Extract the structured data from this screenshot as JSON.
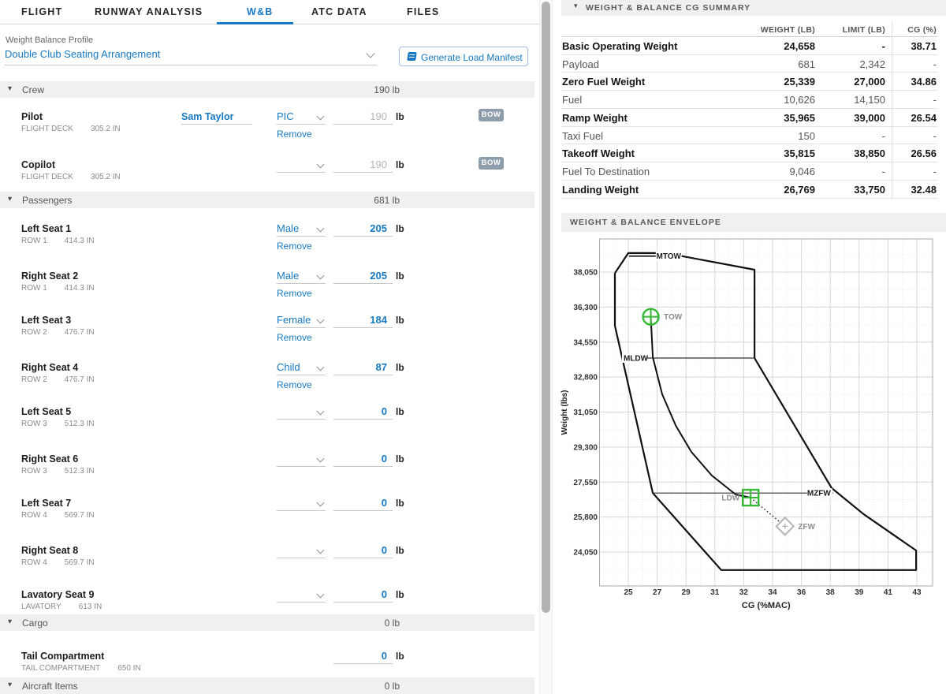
{
  "tabs": {
    "items": [
      {
        "label": "FLIGHT",
        "active": false
      },
      {
        "label": "RUNWAY ANALYSIS",
        "active": false
      },
      {
        "label": "W&B",
        "active": true
      },
      {
        "label": "ATC DATA",
        "active": false
      },
      {
        "label": "FILES",
        "active": false
      }
    ]
  },
  "profile": {
    "label": "Weight Balance Profile",
    "value": "Double Club Seating Arrangement",
    "button_label": "Generate Load Manifest"
  },
  "colors": {
    "accent_blue": "#1879c2",
    "marker_green": "#35b835",
    "marker_gray": "#b9b9b9"
  },
  "sections": [
    {
      "id": "crew",
      "title": "Crew",
      "total": "190 lb",
      "rows": [
        {
          "name": "Pilot",
          "station": "FLIGHT DECK",
          "arm": "305.2 IN",
          "person": "Sam Taylor",
          "has_select": true,
          "select": "PIC",
          "weight": "190",
          "placeholder": true,
          "unit": "lb",
          "badge": "BOW",
          "remove": "Remove"
        },
        {
          "name": "Copilot",
          "station": "FLIGHT DECK",
          "arm": "305.2 IN",
          "has_select": true,
          "select": "",
          "weight": "190",
          "placeholder": true,
          "unit": "lb",
          "badge": "BOW"
        }
      ]
    },
    {
      "id": "passengers",
      "title": "Passengers",
      "total": "681 lb",
      "rows": [
        {
          "name": "Left Seat 1",
          "station": "ROW 1",
          "arm": "414.3 IN",
          "has_select": true,
          "select": "Male",
          "weight": "205",
          "unit": "lb",
          "remove": "Remove"
        },
        {
          "name": "Right Seat 2",
          "station": "ROW 1",
          "arm": "414.3 IN",
          "has_select": true,
          "select": "Male",
          "weight": "205",
          "unit": "lb",
          "remove": "Remove"
        },
        {
          "name": "Left Seat 3",
          "station": "ROW 2",
          "arm": "476.7 IN",
          "has_select": true,
          "select": "Female",
          "weight": "184",
          "unit": "lb",
          "remove": "Remove"
        },
        {
          "name": "Right Seat 4",
          "station": "ROW 2",
          "arm": "476.7 IN",
          "has_select": true,
          "select": "Child",
          "weight": "87",
          "unit": "lb",
          "remove": "Remove"
        },
        {
          "name": "Left Seat 5",
          "station": "ROW 3",
          "arm": "512.3 IN",
          "has_select": true,
          "select": "",
          "weight": "0",
          "unit": "lb"
        },
        {
          "name": "Right Seat 6",
          "station": "ROW 3",
          "arm": "512.3 IN",
          "has_select": true,
          "select": "",
          "weight": "0",
          "unit": "lb"
        },
        {
          "name": "Left Seat 7",
          "station": "ROW 4",
          "arm": "569.7 IN",
          "has_select": true,
          "select": "",
          "weight": "0",
          "unit": "lb"
        },
        {
          "name": "Right Seat 8",
          "station": "ROW 4",
          "arm": "569.7 IN",
          "has_select": true,
          "select": "",
          "weight": "0",
          "unit": "lb"
        },
        {
          "name": "Lavatory Seat 9",
          "station": "LAVATORY",
          "arm": "613 IN",
          "has_select": true,
          "select": "",
          "weight": "0",
          "unit": "lb"
        }
      ]
    },
    {
      "id": "cargo",
      "title": "Cargo",
      "total": "0 lb",
      "rows": [
        {
          "name": "Tail Compartment",
          "station": "TAIL COMPARTMENT",
          "arm": "650 IN",
          "weight": "0",
          "unit": "lb"
        }
      ]
    },
    {
      "id": "aircraft-items",
      "title": "Aircraft Items",
      "total": "0 lb",
      "rows": []
    }
  ],
  "summary": {
    "title": "WEIGHT & BALANCE CG SUMMARY",
    "columns": [
      "WEIGHT (LB)",
      "LIMIT (LB)",
      "CG (%)"
    ],
    "rows": [
      {
        "label": "Basic Operating Weight",
        "weight": "24,658",
        "limit": "-",
        "cg": "38.71",
        "emphasis": true
      },
      {
        "label": "Payload",
        "weight": "681",
        "limit": "2,342",
        "cg": "-",
        "emphasis": false
      },
      {
        "label": "Zero Fuel Weight",
        "weight": "25,339",
        "limit": "27,000",
        "cg": "34.86",
        "emphasis": true
      },
      {
        "label": "Fuel",
        "weight": "10,626",
        "limit": "14,150",
        "cg": "-",
        "emphasis": false
      },
      {
        "label": "Ramp Weight",
        "weight": "35,965",
        "limit": "39,000",
        "cg": "26.54",
        "emphasis": true
      },
      {
        "label": "Taxi Fuel",
        "weight": "150",
        "limit": "-",
        "cg": "-",
        "emphasis": false
      },
      {
        "label": "Takeoff Weight",
        "weight": "35,815",
        "limit": "38,850",
        "cg": "26.56",
        "emphasis": true
      },
      {
        "label": "Fuel To Destination",
        "weight": "9,046",
        "limit": "-",
        "cg": "-",
        "emphasis": false
      },
      {
        "label": "Landing Weight",
        "weight": "26,769",
        "limit": "33,750",
        "cg": "32.48",
        "emphasis": true
      }
    ]
  },
  "chart_data": {
    "type": "line",
    "section_title": "WEIGHT & BALANCE ENVELOPE",
    "xlabel": "CG (%MAC)",
    "ylabel": "Weight (lbs)",
    "x_ticks": [
      25,
      27,
      29,
      31,
      32,
      34,
      36,
      38,
      39,
      41,
      43
    ],
    "y_ticks": [
      24050,
      25800,
      27550,
      29300,
      31050,
      32800,
      34550,
      36300,
      38050
    ],
    "envelope": [
      [
        24.07,
        38000
      ],
      [
        25.0,
        39000
      ],
      [
        26.9,
        39000
      ],
      [
        28.7,
        38850
      ],
      [
        32.75,
        38170
      ],
      [
        32.75,
        33750
      ],
      [
        38.05,
        27250
      ],
      [
        39.3,
        25950
      ],
      [
        42.95,
        24130
      ],
      [
        42.95,
        23150
      ],
      [
        31.22,
        23150
      ],
      [
        26.7,
        27000
      ],
      [
        24.07,
        35370
      ]
    ],
    "envelope_label_gap_after": 2,
    "limit_lines": [
      {
        "label": "MTOW",
        "weight": 38850,
        "cg_from": 25.05,
        "cg_to": 26.9,
        "label_pos": "gap"
      },
      {
        "label": "MLDW",
        "weight": 33750,
        "cg_from": 24.56,
        "cg_to": 32.75,
        "label_pos": "left"
      },
      {
        "label": "MZFW",
        "weight": 27000,
        "cg_from": 26.7,
        "cg_to": 38.1,
        "label_pos": "right"
      }
    ],
    "trend": [
      [
        26.56,
        35815
      ],
      [
        26.7,
        33790
      ],
      [
        27.35,
        31937
      ],
      [
        28.3,
        30360
      ],
      [
        29.37,
        29060
      ],
      [
        30.79,
        27876
      ],
      [
        31.72,
        26929
      ],
      [
        32.48,
        26769
      ]
    ],
    "dotted": [
      [
        32.48,
        26769
      ],
      [
        34.86,
        25339
      ]
    ],
    "markers": [
      {
        "id": "TOW",
        "cg": 26.56,
        "weight": 35815,
        "shape": "circle-cross",
        "color": "#35b835",
        "label_side": "right"
      },
      {
        "id": "LDW",
        "cg": 32.48,
        "weight": 26769,
        "shape": "square-cross",
        "color": "#35b835",
        "label_side": "left"
      },
      {
        "id": "ZFW",
        "cg": 34.86,
        "weight": 25339,
        "shape": "diamond-plus",
        "color": "#b9b9b9",
        "label_side": "right"
      }
    ]
  }
}
